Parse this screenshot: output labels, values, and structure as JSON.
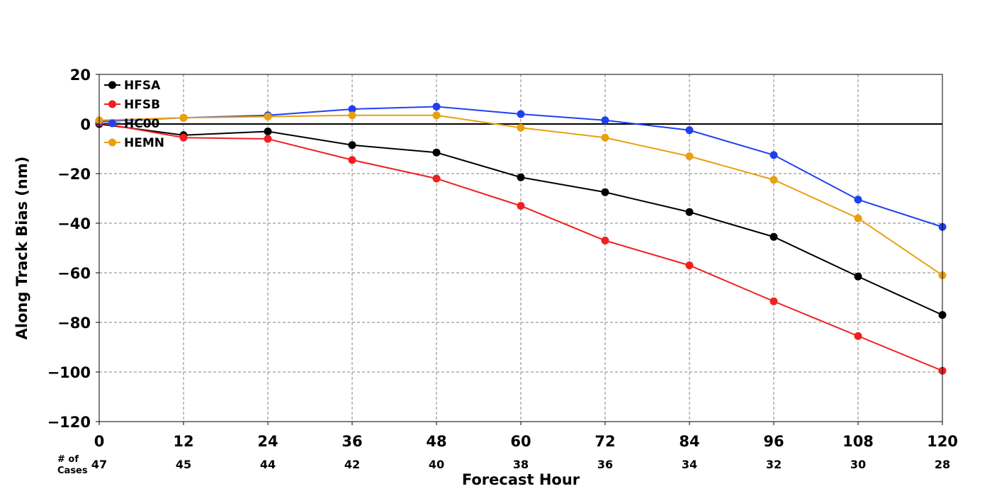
{
  "chart_data": {
    "type": "line",
    "xlabel": "Forecast Hour",
    "ylabel": "Along Track Bias (nm)",
    "x": [
      0,
      12,
      24,
      36,
      48,
      60,
      72,
      84,
      96,
      108,
      120
    ],
    "xlim": [
      0,
      120
    ],
    "ylim": [
      -120,
      20
    ],
    "xticks": [
      "0",
      "12",
      "24",
      "36",
      "48",
      "60",
      "72",
      "84",
      "96",
      "108",
      "120"
    ],
    "yticks": [
      "20",
      "0",
      "−20",
      "−40",
      "−60",
      "−80",
      "−100",
      "−120"
    ],
    "ytick_values": [
      20,
      0,
      -20,
      -40,
      -60,
      -80,
      -100,
      -120
    ],
    "grid": true,
    "legend_position": "top-left",
    "cases_label_line1": "# of",
    "cases_label_line2": "Cases",
    "cases": [
      "47",
      "45",
      "44",
      "42",
      "40",
      "38",
      "36",
      "34",
      "32",
      "30",
      "28"
    ],
    "series": [
      {
        "name": "HFSA",
        "color": "#000000",
        "values": [
          0,
          -4.5,
          -3,
          -8.5,
          -11.5,
          -21.5,
          -27.5,
          -35.5,
          -45.5,
          -61.5,
          -77
        ]
      },
      {
        "name": "HFSB",
        "color": "#f02020",
        "values": [
          0.5,
          -5.5,
          -6,
          -14.5,
          -22,
          -33,
          -47,
          -57,
          -71.5,
          -85.5,
          -99.5
        ]
      },
      {
        "name": "HC00",
        "color": "#2040f0",
        "values": [
          1,
          2.5,
          3.5,
          6,
          7,
          4,
          1.5,
          -2.5,
          -12.5,
          -30.5,
          -41.5
        ]
      },
      {
        "name": "HEMN",
        "color": "#e8a010",
        "values": [
          1.5,
          2.5,
          3,
          3.5,
          3.5,
          -1.5,
          -5.5,
          -13,
          -22.5,
          -38,
          -61
        ]
      }
    ]
  }
}
